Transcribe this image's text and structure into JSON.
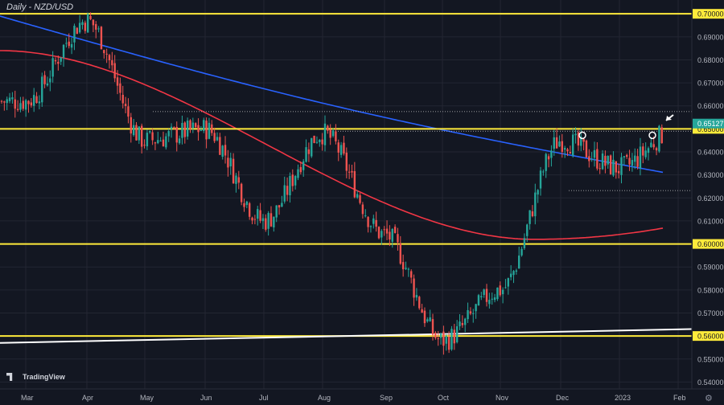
{
  "chart_title": "Daily - NZD/USD",
  "logo_text": "TradingView",
  "settings_icon": "gear-icon",
  "colors": {
    "background": "#131722",
    "grid": "#232632",
    "up": "#26a69a",
    "down": "#ef5350",
    "ma_blue": "#2962ff",
    "ma_red": "#f23645",
    "level": "#ffeb3b",
    "trendline": "#ffffff",
    "axis_text": "#b2b5be",
    "current_price_bg": "#26a69a"
  },
  "chart_data": {
    "type": "candlestick",
    "title": "Daily - NZD/USD",
    "x_ticks": [
      "Mar",
      "Apr",
      "May",
      "Jun",
      "Jul",
      "Aug",
      "Sep",
      "Oct",
      "Nov",
      "Dec",
      "2023",
      "Feb"
    ],
    "y_ticks": [
      "0.70000",
      "0.69000",
      "0.68000",
      "0.67000",
      "0.66000",
      "0.64000",
      "0.63000",
      "0.62000",
      "0.61000",
      "0.59000",
      "0.58000",
      "0.57000",
      "0.55000",
      "0.54000"
    ],
    "ylim": [
      0.537,
      0.706
    ],
    "horizontal_levels": [
      0.7,
      0.65,
      0.6,
      0.56
    ],
    "level_labels": [
      "0.70000",
      "0.65000",
      "0.60000",
      "0.56000"
    ],
    "current_price": 0.65127,
    "current_price_label": "0.65127",
    "dotted_levels": [
      {
        "value": 0.6575,
        "from": "May",
        "to": "Feb"
      },
      {
        "value": 0.649,
        "from": "Aug",
        "to": "Feb"
      },
      {
        "value": 0.6232,
        "from": "Dec",
        "to": "Feb"
      }
    ],
    "key_points": [
      {
        "month": "Mar",
        "price": 0.662
      },
      {
        "month": "Apr",
        "price": 0.697
      },
      {
        "month": "May",
        "price": 0.645
      },
      {
        "month": "Jun",
        "price": 0.65
      },
      {
        "month": "Jul",
        "price": 0.61
      },
      {
        "month": "Aug",
        "price": 0.648
      },
      {
        "month": "Sep",
        "price": 0.604
      },
      {
        "month": "Oct",
        "price": 0.558
      },
      {
        "month": "Nov",
        "price": 0.58
      },
      {
        "month": "Dec",
        "price": 0.645
      },
      {
        "month": "2023",
        "price": 0.633
      },
      {
        "month": "Feb",
        "price": 0.651
      }
    ],
    "ma_200": {
      "start": 0.699,
      "end": 0.619
    },
    "ma_100": {
      "start": 0.684,
      "low": 0.602,
      "end": 0.607
    },
    "trendline": {
      "start": 0.557,
      "end": 0.563
    },
    "markers": {
      "circles_at": 0.65,
      "arrow": "down-left"
    }
  }
}
